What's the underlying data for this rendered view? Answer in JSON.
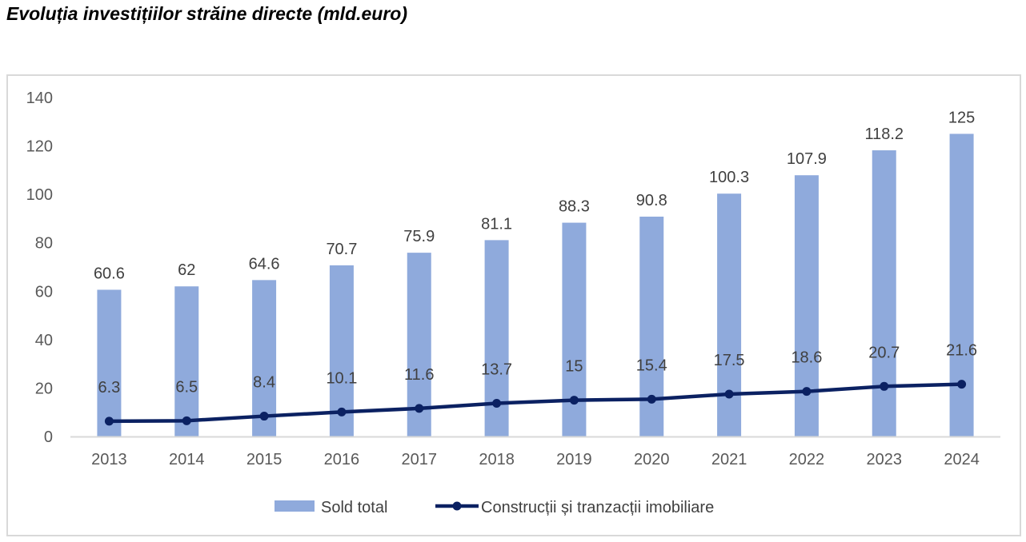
{
  "title": "Evoluția investițiilor străine directe (mld.euro)",
  "colors": {
    "bar": "#8faadc",
    "line": "#0b2162",
    "axis": "#d9d9d9",
    "text": "#595959"
  },
  "chart_data": {
    "type": "bar",
    "title": "Evoluția investițiilor străine directe (mld.euro)",
    "categories": [
      "2013",
      "2014",
      "2015",
      "2016",
      "2017",
      "2018",
      "2019",
      "2020",
      "2021",
      "2022",
      "2023",
      "2024"
    ],
    "ylim": [
      0,
      140
    ],
    "yticks": [
      0,
      20,
      40,
      60,
      80,
      100,
      120,
      140
    ],
    "grid": false,
    "legend_position": "bottom",
    "series": [
      {
        "name": "Sold total",
        "type": "bar",
        "values": [
          60.6,
          62,
          64.6,
          70.7,
          75.9,
          81.1,
          88.3,
          90.8,
          100.3,
          107.9,
          118.2,
          125
        ]
      },
      {
        "name": "Construcții și tranzacții imobiliare",
        "type": "line",
        "values": [
          6.3,
          6.5,
          8.4,
          10.1,
          11.6,
          13.7,
          15,
          15.4,
          17.5,
          18.6,
          20.7,
          21.6
        ]
      }
    ]
  }
}
